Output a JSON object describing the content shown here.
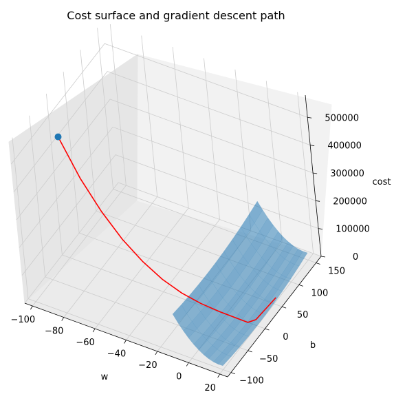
{
  "chart_data": {
    "type": "surface3d",
    "title": "Cost surface and gradient descent path",
    "xlabel": "w",
    "ylabel": "b",
    "zlabel": "cost",
    "x_ticks": [
      "−100",
      "−80",
      "−60",
      "−40",
      "−20",
      "0",
      "20"
    ],
    "y_ticks": [
      "−100",
      "−50",
      "0",
      "50",
      "100",
      "150"
    ],
    "z_ticks": [
      "0",
      "100000",
      "200000",
      "300000",
      "400000",
      "500000"
    ],
    "xlim": [
      -105,
      25
    ],
    "ylim": [
      -110,
      165
    ],
    "zlim": [
      0,
      580000
    ],
    "surface": {
      "w_range": [
        -10,
        20
      ],
      "b_range": [
        -100,
        150
      ],
      "color": "#1f77b4",
      "alpha": 0.5
    },
    "start_point": {
      "w": -100,
      "b": 0,
      "cost": 435000,
      "color": "#1f77b4"
    },
    "path": {
      "color": "#ff0000",
      "points": [
        [
          -100,
          0,
          435000
        ],
        [
          -88,
          0,
          310000
        ],
        [
          -76,
          0,
          215000
        ],
        [
          -64,
          0,
          140000
        ],
        [
          -52,
          0,
          85000
        ],
        [
          -40,
          0,
          45000
        ],
        [
          -28,
          0,
          20000
        ],
        [
          -16,
          0,
          7000
        ],
        [
          -4,
          0,
          2000
        ],
        [
          8,
          0,
          500
        ],
        [
          14,
          0,
          200
        ],
        [
          17,
          10,
          300
        ],
        [
          19,
          60,
          5000
        ]
      ]
    }
  }
}
